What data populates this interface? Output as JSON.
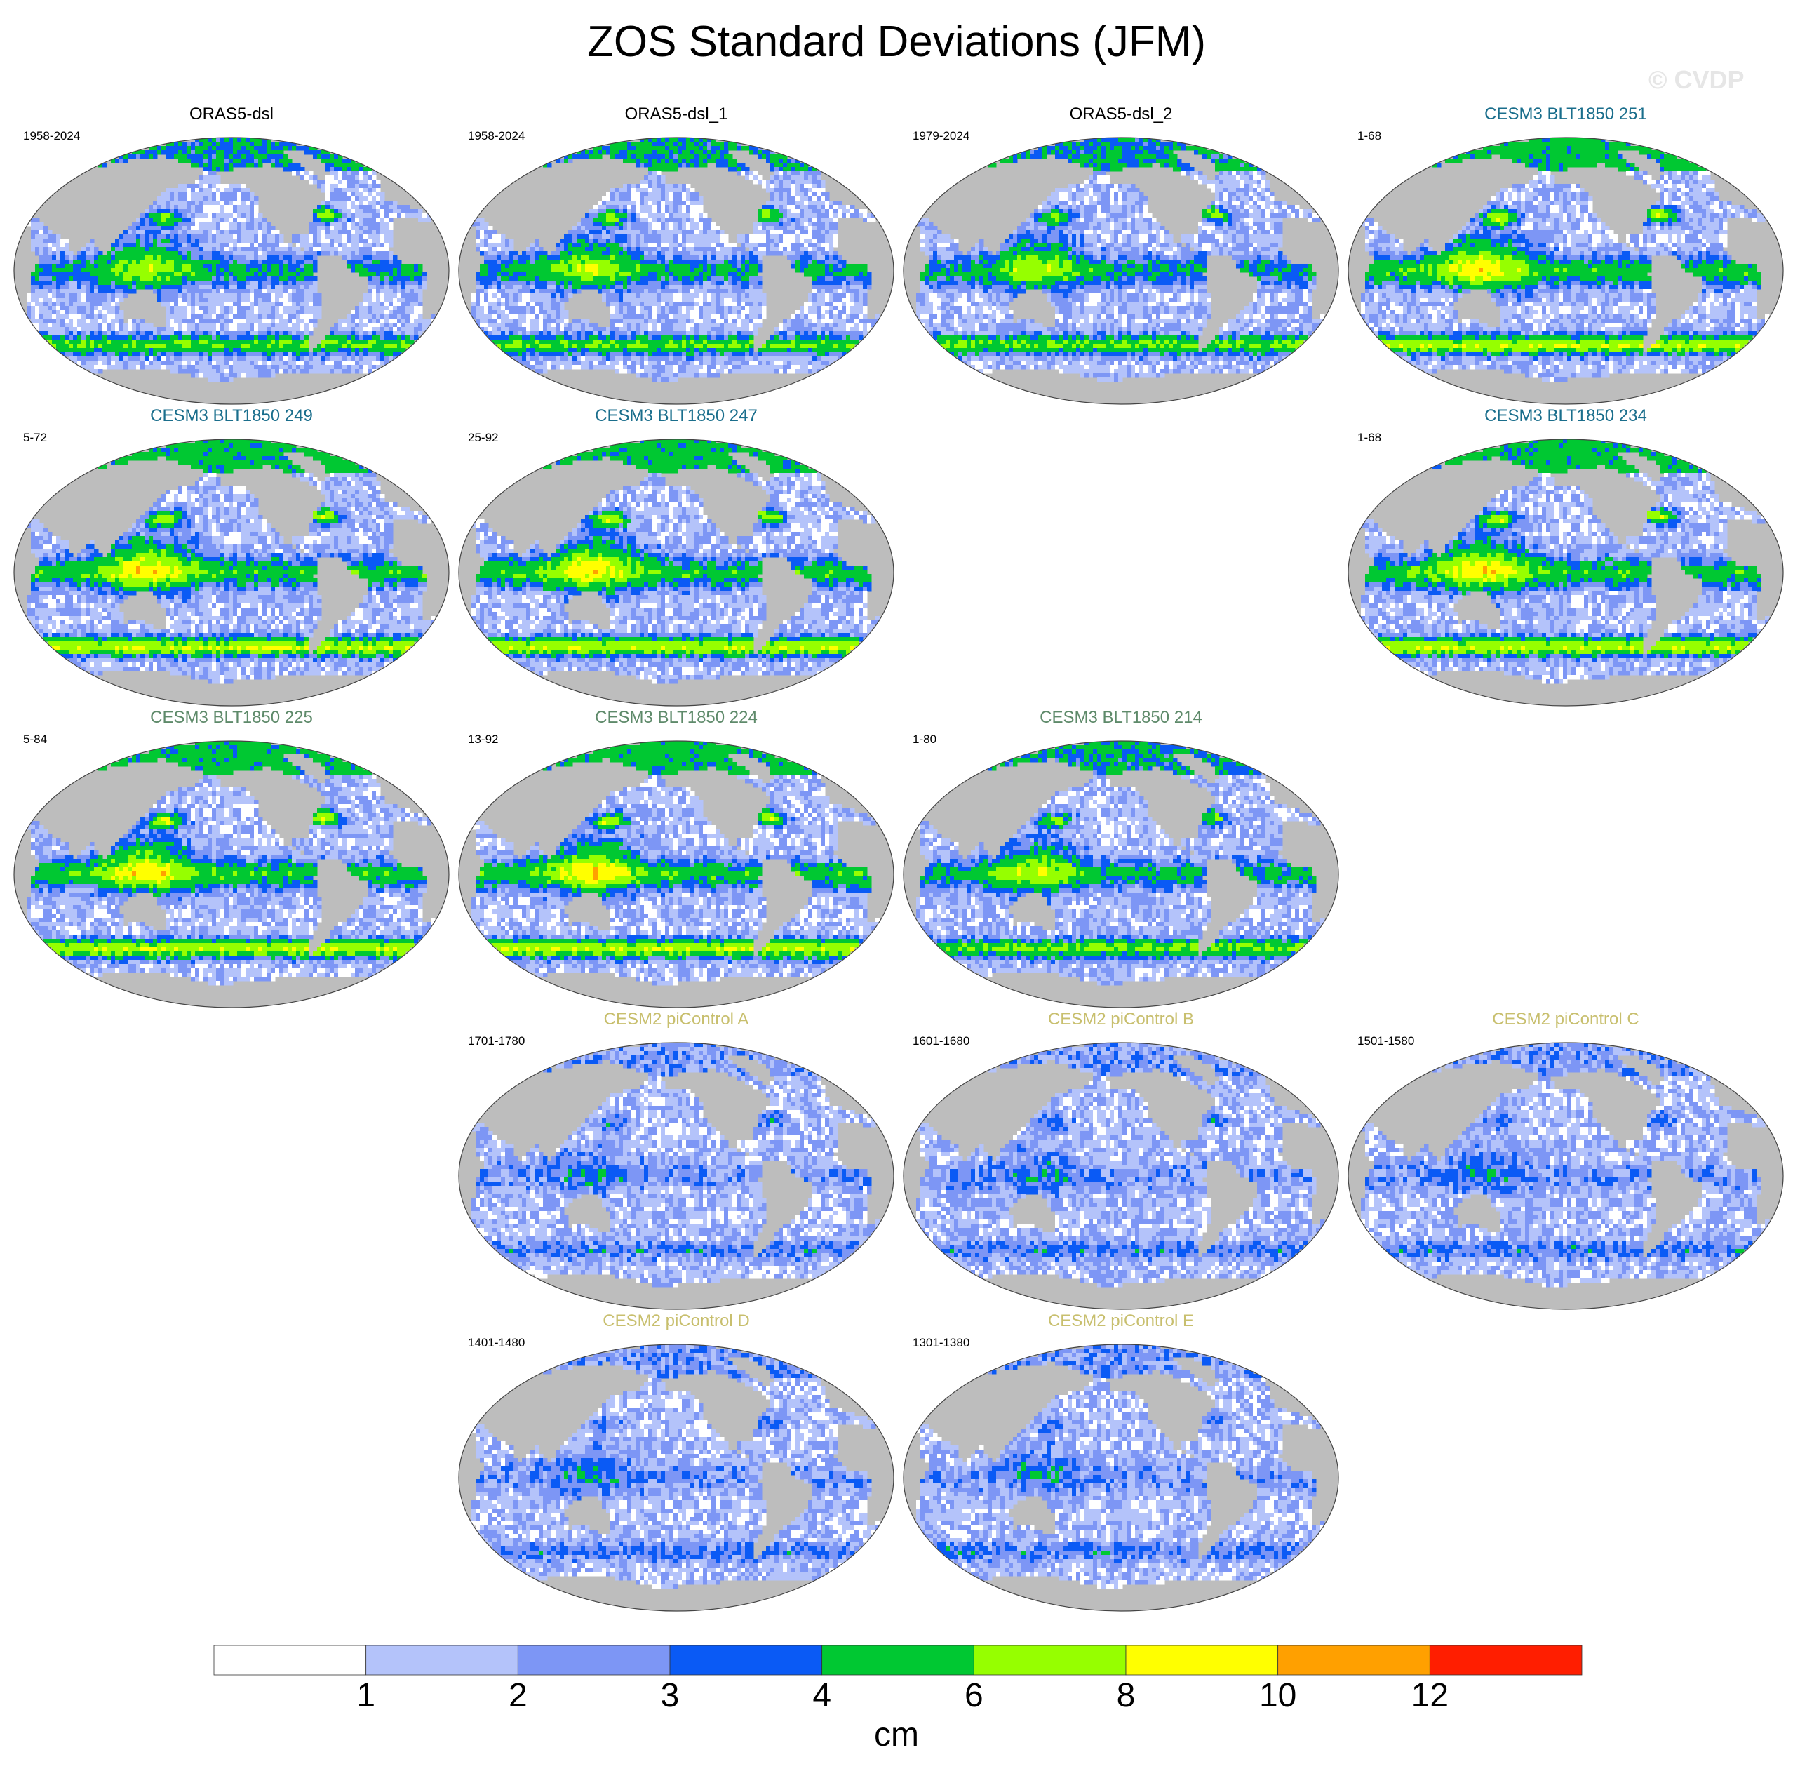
{
  "title": "ZOS Standard Deviations (JFM)",
  "watermark": "© CVDP",
  "colors": {
    "land": "#bdbdbd",
    "obs_title": "#000000",
    "cesm3_a_title": "#1a6e8c",
    "cesm3_b_title": "#5e8a6a",
    "cesm2_title": "#c8bf6e"
  },
  "panels": [
    {
      "title": "ORAS5-dsl",
      "period": "1958-2024",
      "group": "obs",
      "intensity": 3
    },
    {
      "title": "ORAS5-dsl_1",
      "period": "1958-2024",
      "group": "obs",
      "intensity": 3
    },
    {
      "title": "ORAS5-dsl_2",
      "period": "1979-2024",
      "group": "obs",
      "intensity": 3
    },
    {
      "title": "CESM3 BLT1850 251",
      "period": "1-68",
      "group": "cesm3_a",
      "intensity": 4
    },
    {
      "title": "CESM3 BLT1850 249",
      "period": "5-72",
      "group": "cesm3_a",
      "intensity": 4
    },
    {
      "title": "CESM3 BLT1850 247",
      "period": "25-92",
      "group": "cesm3_a",
      "intensity": 4
    },
    {
      "title": "CESM3 BLT1850 234",
      "period": "1-68",
      "group": "cesm3_a",
      "intensity": 4
    },
    {
      "title": "CESM3 BLT1850 225",
      "period": "5-84",
      "group": "cesm3_b",
      "intensity": 4
    },
    {
      "title": "CESM3 BLT1850 224",
      "period": "13-92",
      "group": "cesm3_b",
      "intensity": 4
    },
    {
      "title": "CESM3 BLT1850 214",
      "period": "1-80",
      "group": "cesm3_b",
      "intensity": 3
    },
    {
      "title": "CESM2 piControl A",
      "period": "1701-1780",
      "group": "cesm2",
      "intensity": 1
    },
    {
      "title": "CESM2 piControl B",
      "period": "1601-1680",
      "group": "cesm2",
      "intensity": 1
    },
    {
      "title": "CESM2 piControl C",
      "period": "1501-1580",
      "group": "cesm2",
      "intensity": 1
    },
    {
      "title": "CESM2 piControl D",
      "period": "1401-1480",
      "group": "cesm2",
      "intensity": 1
    },
    {
      "title": "CESM2 piControl E",
      "period": "1301-1380",
      "group": "cesm2",
      "intensity": 1
    }
  ],
  "colorbar": {
    "unit": "cm",
    "levels": [
      "1",
      "2",
      "3",
      "4",
      "6",
      "8",
      "10",
      "12"
    ],
    "colors": [
      "#ffffff",
      "#b4c3fa",
      "#7d96f5",
      "#0a5af5",
      "#00c832",
      "#96ff00",
      "#ffff00",
      "#ffa000",
      "#ff1e00"
    ]
  }
}
